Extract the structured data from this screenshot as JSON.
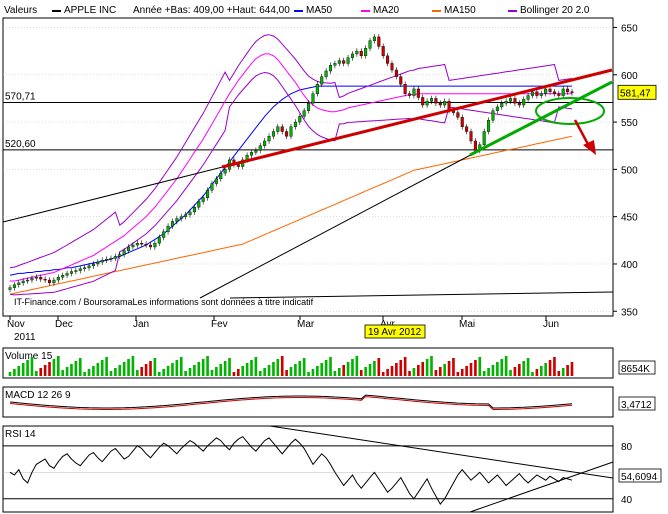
{
  "header": {
    "valeurs_label": "Valeurs",
    "symbol": "APPLE INC",
    "range_text": "Année +Bas: 409,00 +Haut: 644,00",
    "legend": [
      {
        "name": "MA50",
        "color": "#0000ff"
      },
      {
        "name": "MA20",
        "color": "#ff00ff"
      },
      {
        "name": "MA150",
        "color": "#ff6600"
      },
      {
        "name": "Bollinger 20 2.0",
        "color": "#9900cc"
      }
    ]
  },
  "colors": {
    "up_candle": "#00b400",
    "down_candle": "#cc0000",
    "panel_bg": "#ffffff",
    "grid": "#bbbbbb",
    "red_trend": "#cc0000",
    "green_trend": "#00aa00",
    "price_tag": "#ffff00"
  },
  "chart_data": [
    {
      "type": "candlestick",
      "panel": "price",
      "ylim": [
        345,
        660
      ],
      "y_ticks": [
        350,
        400,
        450,
        500,
        550,
        600,
        650
      ],
      "x_labels": [
        {
          "label": "Nov",
          "sub": "2011",
          "month": 0
        },
        {
          "label": "Dec",
          "sub": "",
          "month": 1
        },
        {
          "label": "Jan",
          "sub": "",
          "month": 2
        },
        {
          "label": "Fev",
          "sub": "",
          "month": 3
        },
        {
          "label": "Mar",
          "sub": "",
          "month": 4
        },
        {
          "label": "Avr",
          "sub": "2012",
          "month": 5
        },
        {
          "label": "Mai",
          "sub": "",
          "month": 6
        },
        {
          "label": "Jun",
          "sub": "",
          "month": 7
        }
      ],
      "levels": [
        {
          "label": "570,71",
          "value": 570.71
        },
        {
          "label": "520,60",
          "value": 520.6
        }
      ],
      "last_price_label": "581,47",
      "last_price": 581.47,
      "date_marker": "19 Avr 2012",
      "source_text": "IT-Finance.com / BoursoramaLes informations sont données à titre indicatif",
      "closes": [
        375,
        378,
        380,
        382,
        383,
        385,
        386,
        384,
        383,
        380,
        383,
        386,
        388,
        390,
        392,
        393,
        395,
        396,
        398,
        400,
        402,
        404,
        405,
        406,
        408,
        410,
        414,
        418,
        420,
        422,
        421,
        420,
        418,
        422,
        428,
        434,
        440,
        445,
        448,
        450,
        452,
        455,
        460,
        466,
        470,
        478,
        485,
        490,
        496,
        500,
        510,
        505,
        503,
        510,
        515,
        518,
        520,
        525,
        530,
        535,
        540,
        545,
        540,
        535,
        545,
        550,
        556,
        562,
        570,
        580,
        590,
        598,
        604,
        610,
        612,
        615,
        612,
        618,
        622,
        625,
        620,
        628,
        636,
        640,
        630,
        620,
        612,
        605,
        598,
        590,
        580,
        578,
        585,
        576,
        568,
        572,
        575,
        570,
        568,
        572,
        562,
        560,
        555,
        545,
        540,
        530,
        520,
        526,
        540,
        552,
        562,
        566,
        570,
        572,
        575,
        570,
        568,
        574,
        578,
        582,
        578,
        580,
        585,
        582,
        580,
        578,
        585,
        582,
        581
      ],
      "ma20": [
        382,
        382,
        383,
        384,
        385,
        386,
        387,
        388,
        389,
        390,
        391,
        393,
        395,
        397,
        399,
        401,
        403,
        405,
        407,
        409,
        412,
        415,
        418,
        421,
        424,
        427,
        430,
        434,
        438,
        442,
        446,
        450,
        455,
        460,
        466,
        472,
        478,
        484,
        490,
        497,
        504,
        511,
        518,
        525,
        532,
        540,
        548,
        556,
        564,
        572,
        580,
        587,
        594,
        600,
        606,
        612,
        617,
        620,
        622,
        622,
        620,
        616,
        610,
        604,
        598,
        592,
        585,
        578,
        572,
        568,
        565,
        563,
        562,
        561,
        561,
        562,
        563,
        565,
        566,
        567,
        568,
        569,
        570,
        571,
        572,
        573,
        574,
        575,
        576,
        577,
        578,
        579,
        579,
        580,
        580,
        580,
        580,
        580,
        580,
        580,
        580,
        580,
        580,
        580,
        580,
        580,
        580,
        580,
        580,
        580,
        580,
        580,
        580,
        580,
        580,
        580,
        580,
        580,
        580,
        580,
        580,
        580,
        580,
        580,
        580,
        580,
        580,
        580,
        580
      ],
      "ma50": [
        388,
        389,
        390,
        390,
        391,
        391,
        392,
        392,
        393,
        393,
        394,
        394,
        395,
        396,
        396,
        397,
        398,
        399,
        400,
        401,
        402,
        403,
        404,
        405,
        407,
        408,
        410,
        412,
        414,
        416,
        418,
        420,
        423,
        426,
        429,
        432,
        436,
        440,
        444,
        448,
        452,
        457,
        462,
        467,
        472,
        478,
        484,
        490,
        496,
        502,
        508,
        514,
        520,
        526,
        532,
        538,
        544,
        550,
        556,
        561,
        566,
        570,
        574,
        577,
        580,
        582,
        584,
        585,
        586,
        587,
        588,
        588,
        588,
        588,
        588,
        588,
        588,
        588,
        588,
        588,
        588,
        588,
        588,
        588,
        588,
        588,
        588,
        588,
        588,
        588,
        588,
        588,
        588,
        588,
        588,
        588,
        588,
        588,
        588,
        588,
        588,
        588,
        588,
        588,
        588,
        588,
        588,
        588,
        588,
        588,
        588,
        588,
        588,
        588,
        588,
        588,
        588,
        588,
        588,
        588,
        588,
        588,
        588,
        588,
        588,
        588,
        588,
        588,
        588
      ],
      "ma150": [
        368,
        369,
        370,
        371,
        372,
        373,
        374,
        375,
        376,
        377,
        378,
        379,
        380,
        381,
        382,
        383,
        384,
        385,
        386,
        387,
        388,
        389,
        390,
        391,
        392,
        393,
        394,
        395,
        396,
        397,
        398,
        399,
        400,
        401,
        402,
        403,
        404,
        405,
        406,
        407,
        408,
        409,
        410,
        411,
        412,
        413,
        414,
        415,
        416,
        417,
        418,
        419,
        420,
        421,
        423,
        425,
        427,
        429,
        431,
        433,
        435,
        437,
        439,
        441,
        443,
        445,
        447,
        449,
        451,
        453,
        455,
        457,
        459,
        461,
        463,
        465,
        467,
        469,
        471,
        473,
        475,
        477,
        479,
        481,
        483,
        485,
        487,
        489,
        491,
        493,
        495,
        497,
        499,
        500,
        501,
        502,
        503,
        504,
        505,
        506,
        507,
        508,
        509,
        510,
        511,
        512,
        513,
        514,
        515,
        516,
        517,
        518,
        519,
        520,
        521,
        522,
        523,
        524,
        525,
        526,
        527,
        528,
        529,
        530,
        531,
        532,
        533,
        534,
        535
      ]
    },
    {
      "type": "bar",
      "panel": "volume",
      "title": "Volume 15",
      "last_label": "8654K"
    },
    {
      "type": "line",
      "panel": "macd",
      "title": "MACD 12 26 9",
      "last_label": "3,4712"
    },
    {
      "type": "line",
      "panel": "rsi",
      "title": "RSI 14",
      "ylim": [
        30,
        95
      ],
      "y_ticks": [
        40,
        60,
        80
      ],
      "last_label": "54,6094",
      "values": [
        60,
        58,
        62,
        55,
        52,
        60,
        66,
        68,
        70,
        65,
        63,
        68,
        72,
        74,
        70,
        67,
        65,
        69,
        73,
        75,
        71,
        68,
        72,
        76,
        78,
        74,
        70,
        72,
        76,
        80,
        78,
        74,
        71,
        75,
        79,
        82,
        80,
        77,
        74,
        78,
        81,
        84,
        82,
        79,
        76,
        80,
        83,
        86,
        84,
        80,
        77,
        82,
        85,
        87,
        83,
        79,
        76,
        80,
        84,
        86,
        82,
        78,
        74,
        78,
        82,
        85,
        82,
        78,
        72,
        66,
        70,
        74,
        71,
        66,
        60,
        55,
        50,
        54,
        58,
        52,
        48,
        52,
        56,
        60,
        55,
        50,
        45,
        48,
        52,
        56,
        50,
        44,
        40,
        45,
        50,
        55,
        48,
        42,
        36,
        40,
        46,
        52,
        58,
        62,
        58,
        54,
        57,
        60,
        56,
        52,
        55,
        58,
        54,
        50,
        53,
        56,
        59,
        55,
        52,
        55,
        58,
        56,
        54,
        57,
        55,
        53,
        56,
        55,
        54
      ]
    }
  ]
}
